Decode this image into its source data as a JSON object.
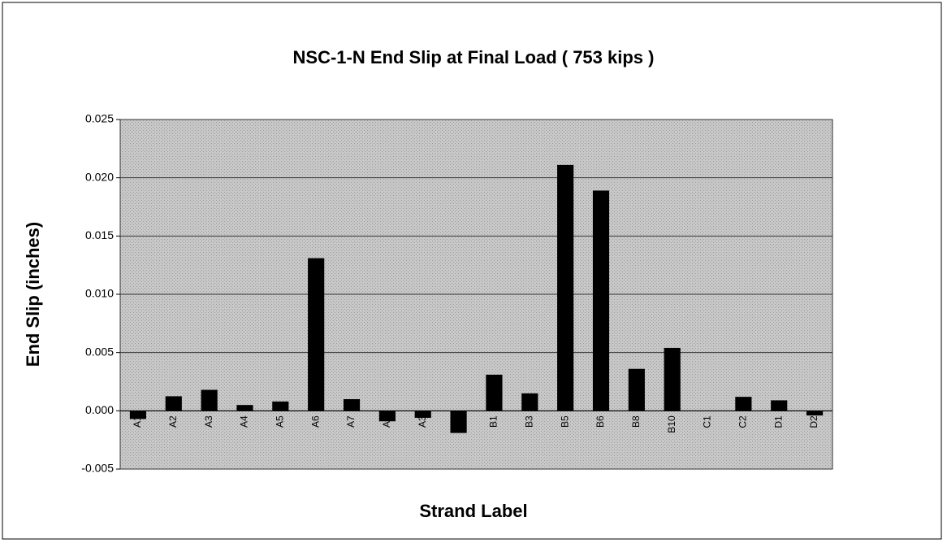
{
  "chart_data": {
    "type": "bar",
    "title": "NSC-1-N End Slip at Final Load ( 753 kips )",
    "x_label": "Strand Label",
    "y_label": "End Slip (inches)",
    "categories": [
      "A1",
      "A2",
      "A3",
      "A4",
      "A5",
      "A6",
      "A7",
      "A8",
      "A3",
      "A1",
      "B1",
      "B3",
      "B5",
      "B6",
      "B8",
      "B10",
      "C1",
      "C2",
      "D1",
      "D2"
    ],
    "values": [
      -0.0007,
      0.00125,
      0.0018,
      0.0005,
      0.0008,
      0.0131,
      0.001,
      -0.0009,
      -0.0006,
      -0.0019,
      0.0031,
      0.0015,
      0.0211,
      0.0189,
      0.0036,
      0.0054,
      0,
      0.0012,
      0.0009,
      -0.0004
    ],
    "color": "#000000",
    "ylim": [
      -0.005,
      0.025
    ],
    "yticks": [
      {
        "value": -0.005,
        "label": "-0.005"
      },
      {
        "value": 0,
        "label": "0.000"
      },
      {
        "value": 0.005,
        "label": "0.005"
      },
      {
        "value": 0.01,
        "label": "0.010"
      },
      {
        "value": 0.015,
        "label": "0.015"
      },
      {
        "value": 0.02,
        "label": "0.020"
      },
      {
        "value": 0.025,
        "label": "0.025"
      }
    ],
    "grid": true
  }
}
